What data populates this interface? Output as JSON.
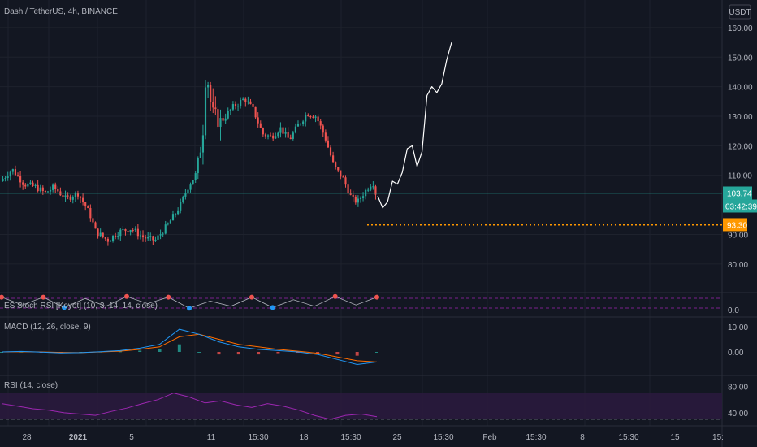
{
  "header": {
    "symbol_title": "Dash / TetherUS, 4h, BINANCE",
    "currency_button": "USDT"
  },
  "price_pane": {
    "y_ticks": [
      "160.00",
      "150.00",
      "140.00",
      "130.00",
      "120.00",
      "110.00",
      "90.00",
      "80.00"
    ],
    "last_price": "103.74",
    "countdown": "03:42:39",
    "support_level": "93.30",
    "colors": {
      "up": "#26a69a",
      "down": "#ef5350",
      "support": "#ff9800",
      "projection": "#ffffff"
    }
  },
  "stoch_pane": {
    "title": "ES Stoch RSI [Koyot] (10, 3, 14, 14, close)",
    "y_ticks": [
      "0.0"
    ]
  },
  "macd_pane": {
    "title": "MACD (12, 26, close, 9)",
    "y_ticks": [
      "10.00",
      "0.00"
    ],
    "colors": {
      "macd": "#2196f3",
      "signal": "#ff6d00"
    }
  },
  "rsi_pane": {
    "title": "RSI (14, close)",
    "y_ticks": [
      "80.00",
      "40.00"
    ],
    "colors": {
      "line": "#9c27b0",
      "band": "#2a1a3d"
    }
  },
  "x_axis": {
    "labels": [
      "28",
      "2021",
      "5",
      "11",
      "15:30",
      "18",
      "15:30",
      "25",
      "15:30",
      "Feb",
      "15:30",
      "8",
      "15:30",
      "15",
      "15:"
    ]
  },
  "chart_data": {
    "type": "candlestick",
    "title": "Dash / TetherUS, 4h, BINANCE",
    "ylim": [
      75,
      163
    ],
    "x_tick_labels": [
      "28",
      "2021",
      "5",
      "11",
      "15:30",
      "18",
      "15:30",
      "25",
      "15:30",
      "Feb",
      "15:30",
      "8",
      "15:30",
      "15",
      "15:"
    ],
    "y_tick_labels": [
      "160.00",
      "150.00",
      "140.00",
      "130.00",
      "120.00",
      "110.00",
      "90.00",
      "80.00"
    ],
    "price_path": [
      [
        0,
        108
      ],
      [
        4,
        112
      ],
      [
        8,
        107
      ],
      [
        12,
        106
      ],
      [
        15,
        104
      ],
      [
        18,
        106
      ],
      [
        22,
        102
      ],
      [
        26,
        104
      ],
      [
        30,
        97
      ],
      [
        32,
        91
      ],
      [
        36,
        88
      ],
      [
        40,
        91
      ],
      [
        44,
        92
      ],
      [
        48,
        89
      ],
      [
        52,
        88
      ],
      [
        56,
        93
      ],
      [
        60,
        99
      ],
      [
        63,
        106
      ],
      [
        66,
        111
      ],
      [
        68,
        125
      ],
      [
        69,
        145
      ],
      [
        70,
        140
      ],
      [
        71,
        131
      ],
      [
        74,
        128
      ],
      [
        78,
        133
      ],
      [
        82,
        136
      ],
      [
        85,
        132
      ],
      [
        88,
        124
      ],
      [
        91,
        123
      ],
      [
        94,
        126
      ],
      [
        97,
        122
      ],
      [
        100,
        127
      ],
      [
        103,
        131
      ],
      [
        106,
        130
      ],
      [
        109,
        123
      ],
      [
        112,
        113
      ],
      [
        115,
        109
      ],
      [
        118,
        102
      ],
      [
        120,
        101
      ],
      [
        122,
        104
      ],
      [
        125,
        108
      ],
      [
        126,
        104
      ]
    ],
    "last_price": 103.74,
    "countdown": "03:42:39",
    "support_level": 93.3,
    "projection_path": [
      [
        0,
        103
      ],
      [
        1,
        99
      ],
      [
        2,
        101
      ],
      [
        3,
        108
      ],
      [
        4,
        107
      ],
      [
        5,
        111
      ],
      [
        6,
        119
      ],
      [
        7,
        120
      ],
      [
        8,
        113
      ],
      [
        9,
        118
      ],
      [
        10,
        137
      ],
      [
        11,
        140
      ],
      [
        12,
        138
      ],
      [
        13,
        141
      ],
      [
        14,
        149
      ],
      [
        15,
        155
      ]
    ],
    "indicators": {
      "stoch_rsi": {
        "name": "ES Stoch RSI [Koyot] (10, 3, 14, 14, close)",
        "path": [
          0.9,
          0.3,
          0.9,
          0.1,
          0.8,
          0.2,
          0.95,
          0.4,
          0.9,
          0.05,
          0.6,
          0.2,
          0.9,
          0.1,
          0.7,
          0.2,
          0.95,
          0.3,
          0.9
        ],
        "ylim": [
          0,
          1
        ]
      },
      "macd": {
        "name": "MACD (12, 26, close, 9)",
        "macd": [
          0,
          0.2,
          -0.1,
          -0.4,
          -0.3,
          0.1,
          0.5,
          1.5,
          3,
          9,
          7,
          4,
          2,
          1,
          0.5,
          0,
          -1,
          -3,
          -5,
          -4
        ],
        "signal": [
          0,
          0.1,
          0,
          -0.2,
          -0.3,
          0,
          0.3,
          1,
          2,
          6,
          7,
          5,
          3,
          2,
          1,
          0.3,
          -0.5,
          -2,
          -3.5,
          -4
        ],
        "ylim": [
          -7,
          11
        ]
      },
      "rsi": {
        "name": "RSI (14, close)",
        "path": [
          54,
          50,
          46,
          44,
          40,
          38,
          36,
          42,
          47,
          54,
          60,
          70,
          64,
          55,
          58,
          52,
          48,
          54,
          50,
          44,
          36,
          30,
          36,
          38,
          34
        ],
        "ylim": [
          30,
          86
        ],
        "bands": [
          70,
          30
        ]
      }
    }
  }
}
